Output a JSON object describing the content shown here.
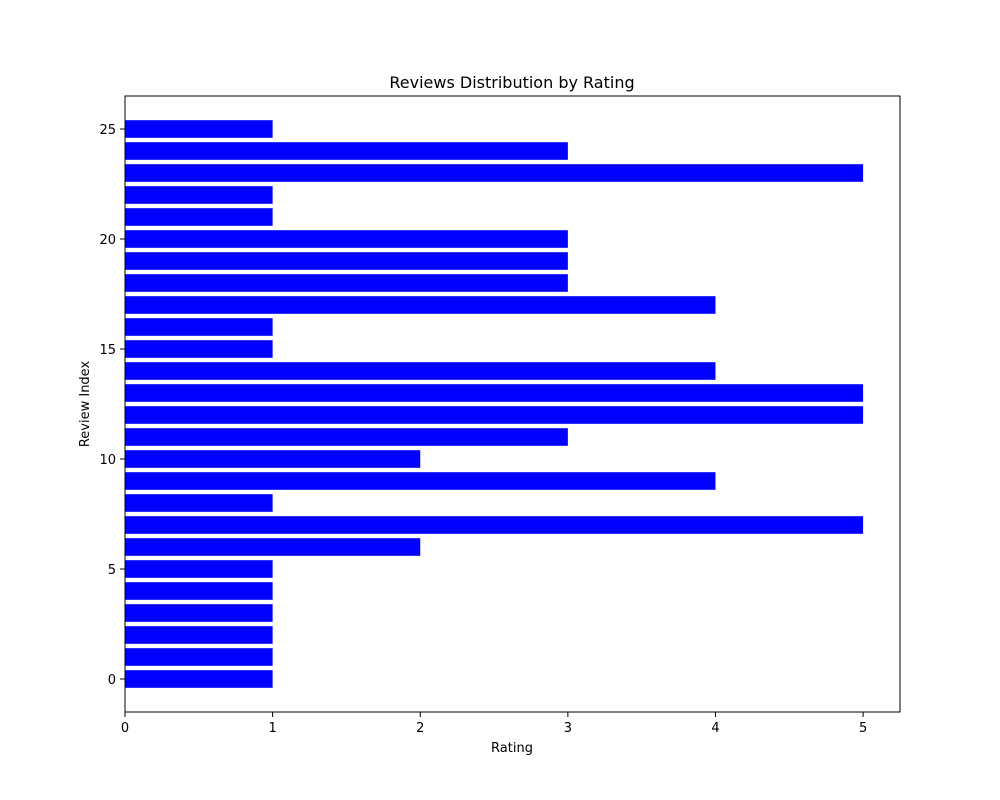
{
  "chart_data": {
    "type": "bar",
    "orientation": "horizontal",
    "title": "Reviews Distribution by Rating",
    "xlabel": "Rating",
    "ylabel": "Review Index",
    "bar_color": "#0000ff",
    "xlim": [
      0,
      5.25
    ],
    "ylim": [
      -1.5,
      26.5
    ],
    "xticks": [
      0,
      1,
      2,
      3,
      4,
      5
    ],
    "yticks": [
      0,
      5,
      10,
      15,
      20,
      25
    ],
    "grid": false,
    "legend": "none",
    "index": [
      0,
      1,
      2,
      3,
      4,
      5,
      6,
      7,
      8,
      9,
      10,
      11,
      12,
      13,
      14,
      15,
      16,
      17,
      18,
      19,
      20,
      21,
      22,
      23,
      24,
      25
    ],
    "values": [
      1,
      1,
      1,
      1,
      1,
      1,
      2,
      5,
      1,
      4,
      2,
      3,
      5,
      5,
      4,
      1,
      1,
      4,
      3,
      3,
      3,
      1,
      1,
      5,
      3,
      1
    ]
  }
}
